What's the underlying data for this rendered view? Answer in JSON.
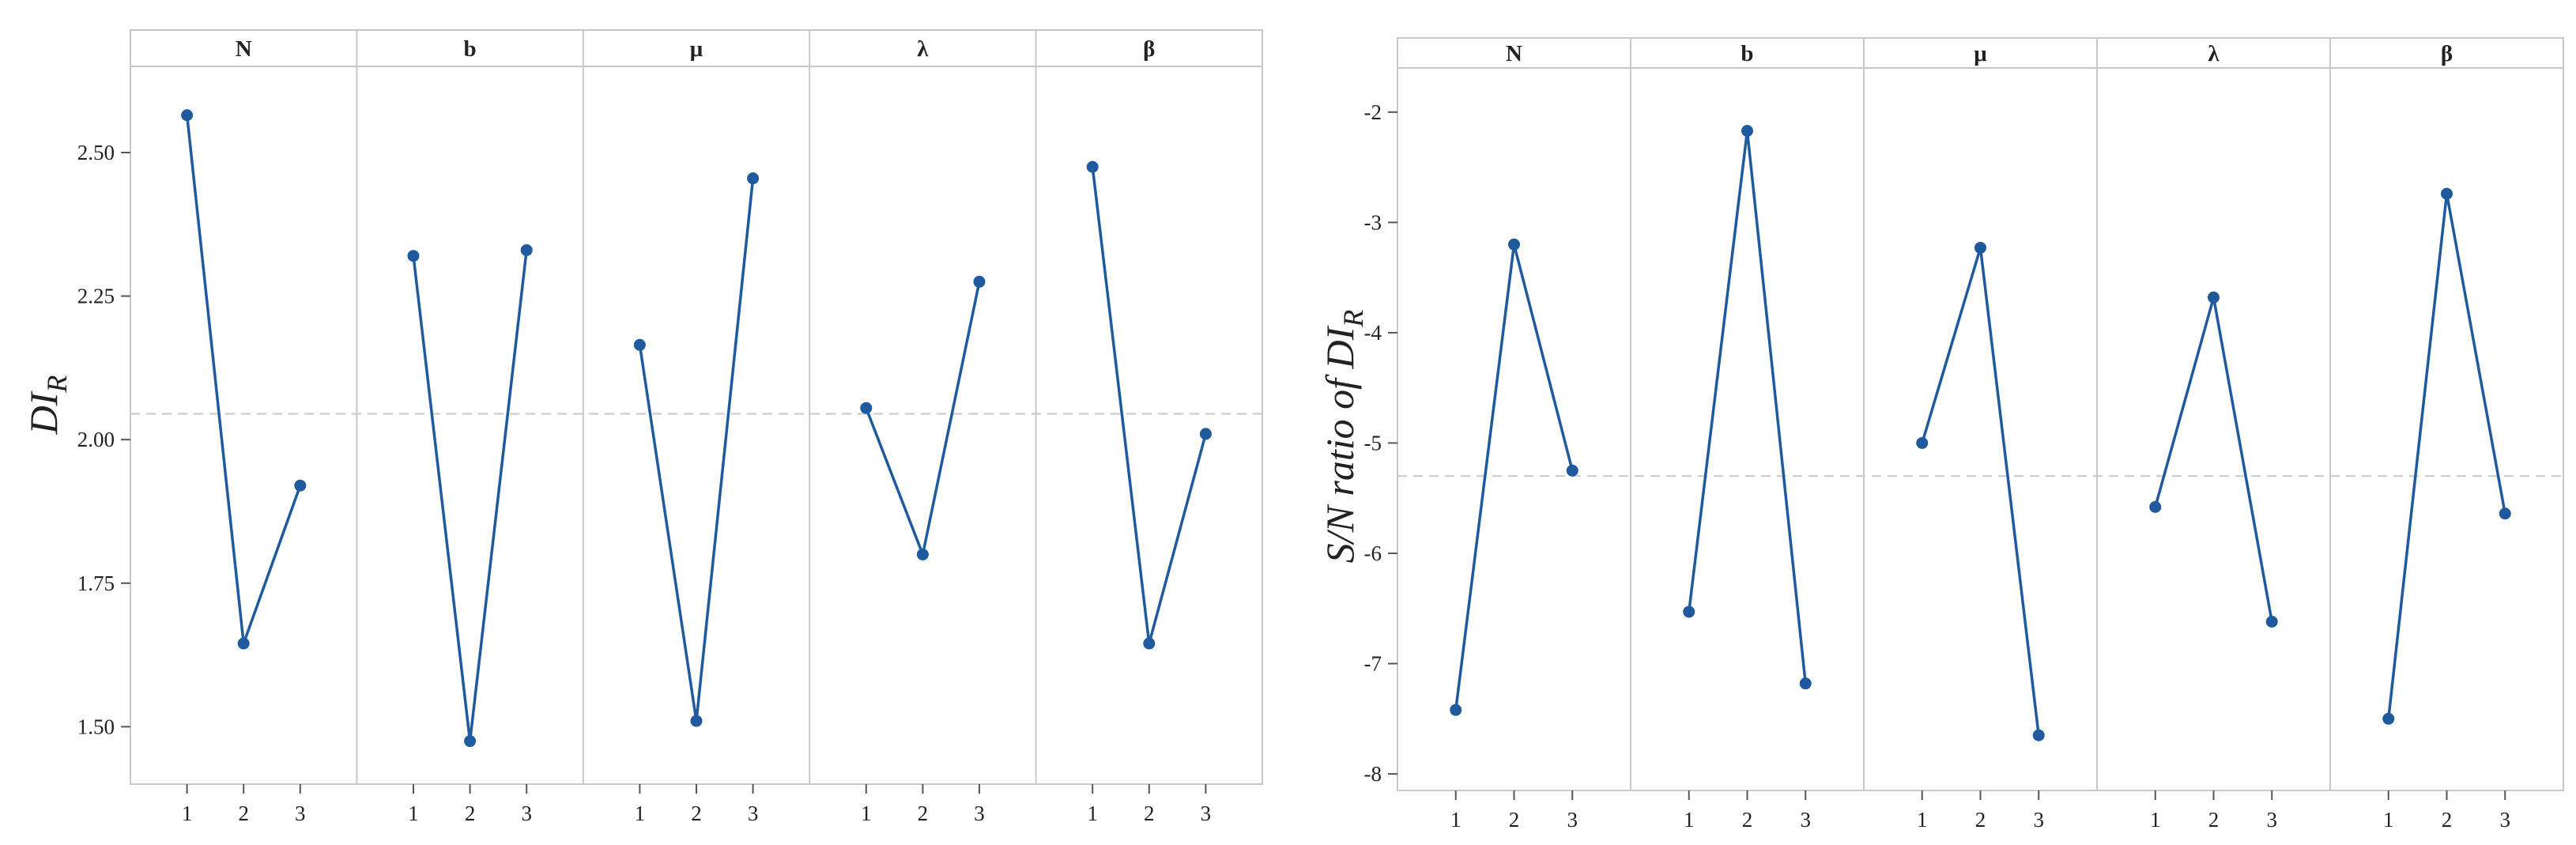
{
  "colors": {
    "series": "#1f5a9f",
    "mean_line": "#c9c9c9",
    "frame": "#c8c8c8"
  },
  "chart_data": [
    {
      "type": "line",
      "title": "",
      "ylabel_main": "DI",
      "ylabel_sub": "R",
      "ylabel_prefix": "",
      "xlabel": "",
      "ylim": [
        1.4,
        2.65
      ],
      "yticks": [
        1.5,
        1.75,
        2.0,
        2.25,
        2.5
      ],
      "ytick_labels": [
        "1.50",
        "1.75",
        "2.00",
        "2.25",
        "2.50"
      ],
      "mean": 2.045,
      "grid": false,
      "panels": [
        {
          "name": "N",
          "x": [
            "1",
            "2",
            "3"
          ],
          "values": [
            2.565,
            1.645,
            1.92
          ]
        },
        {
          "name": "b",
          "x": [
            "1",
            "2",
            "3"
          ],
          "values": [
            2.32,
            1.475,
            2.33
          ]
        },
        {
          "name": "μ",
          "x": [
            "1",
            "2",
            "3"
          ],
          "values": [
            2.165,
            1.51,
            2.455
          ]
        },
        {
          "name": "λ",
          "x": [
            "1",
            "2",
            "3"
          ],
          "values": [
            2.055,
            1.8,
            2.275
          ]
        },
        {
          "name": "β",
          "x": [
            "1",
            "2",
            "3"
          ],
          "values": [
            2.475,
            1.645,
            2.01
          ]
        }
      ]
    },
    {
      "type": "line",
      "title": "",
      "ylabel_main": "S/N ratio of DI",
      "ylabel_sub": "R",
      "xlabel": "",
      "ylim": [
        -8.15,
        -1.6
      ],
      "yticks": [
        -8,
        -7,
        -6,
        -5,
        -4,
        -3,
        -2
      ],
      "ytick_labels": [
        "-8",
        "-7",
        "-6",
        "-5",
        "-4",
        "-3",
        "-2"
      ],
      "mean": -5.3,
      "grid": false,
      "panels": [
        {
          "name": "N",
          "x": [
            "1",
            "2",
            "3"
          ],
          "values": [
            -7.42,
            -3.2,
            -5.25
          ]
        },
        {
          "name": "b",
          "x": [
            "1",
            "2",
            "3"
          ],
          "values": [
            -6.53,
            -2.17,
            -7.18
          ]
        },
        {
          "name": "μ",
          "x": [
            "1",
            "2",
            "3"
          ],
          "values": [
            -5.0,
            -3.23,
            -7.65
          ]
        },
        {
          "name": "λ",
          "x": [
            "1",
            "2",
            "3"
          ],
          "values": [
            -5.58,
            -3.68,
            -6.62
          ]
        },
        {
          "name": "β",
          "x": [
            "1",
            "2",
            "3"
          ],
          "values": [
            -7.5,
            -2.74,
            -5.64
          ]
        }
      ]
    }
  ]
}
